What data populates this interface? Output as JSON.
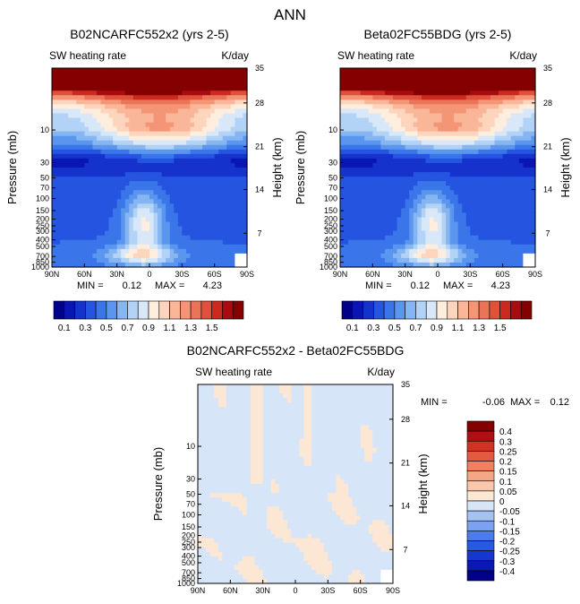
{
  "figure": {
    "title": "ANN",
    "variable": "SW heating rate",
    "units": "K/day",
    "pressure_label": "Pressure (mb)",
    "height_label": "Height (km)",
    "min_label": "MIN =",
    "max_label": "MAX ="
  },
  "colors": {
    "panel_scale": [
      "#00008b",
      "#0a16b4",
      "#1632cc",
      "#2554e0",
      "#3a76ea",
      "#5b96ee",
      "#86b6f2",
      "#b2d2f6",
      "#d9e8f8",
      "#ffeedd",
      "#fdd4bc",
      "#f9b698",
      "#f49676",
      "#eb7458",
      "#e0503a",
      "#cc2a20",
      "#a80c10",
      "#850000"
    ],
    "diff_scale": [
      "#00008b",
      "#0a18b4",
      "#1636d0",
      "#2a58e2",
      "#4a7cec",
      "#7aa2f0",
      "#a6c2f4",
      "#d6e6f8",
      "#fce6d4",
      "#f9c8ac",
      "#f5a684",
      "#ef8160",
      "#e35a40",
      "#d23224",
      "#b01014",
      "#850000"
    ]
  },
  "chart_data": [
    {
      "type": "heatmap",
      "title": "B02NCARFC552x2 (yrs 2-5)",
      "subtitle_left": "SW heating rate",
      "subtitle_right": "K/day",
      "xlabel": "",
      "ylabel": "Pressure (mb)",
      "ylabel_right": "Height (km)",
      "x_ticks": [
        "90N",
        "60N",
        "30N",
        "0",
        "30S",
        "60S",
        "90S"
      ],
      "y_ticks": [
        10,
        30,
        50,
        70,
        100,
        150,
        200,
        250,
        300,
        400,
        500,
        700,
        850,
        1000
      ],
      "y_ticks_right": [
        35,
        28,
        21,
        14,
        7
      ],
      "min": 0.12,
      "max": 4.23,
      "colorbar_labels": [
        "0.1",
        "0.3",
        "0.5",
        "0.7",
        "0.9",
        "1.1",
        "1.3",
        "1.5"
      ]
    },
    {
      "type": "heatmap",
      "title": "Beta02FC55BDG (yrs 2-5)",
      "subtitle_left": "SW heating rate",
      "subtitle_right": "K/day",
      "xlabel": "",
      "ylabel": "Pressure (mb)",
      "ylabel_right": "Height (km)",
      "x_ticks": [
        "90N",
        "60N",
        "30N",
        "0",
        "30S",
        "60S",
        "90S"
      ],
      "y_ticks": [
        10,
        30,
        50,
        70,
        100,
        150,
        200,
        250,
        300,
        400,
        500,
        700,
        850,
        1000
      ],
      "y_ticks_right": [
        35,
        28,
        21,
        14,
        7
      ],
      "min": 0.12,
      "max": 4.23,
      "colorbar_labels": [
        "0.1",
        "0.3",
        "0.5",
        "0.7",
        "0.9",
        "1.1",
        "1.3",
        "1.5"
      ]
    },
    {
      "type": "heatmap",
      "title": "B02NCARFC552x2 - Beta02FC55BDG",
      "subtitle_left": "SW heating rate",
      "subtitle_right": "K/day",
      "xlabel": "",
      "ylabel": "Pressure (mb)",
      "ylabel_right": "Height (km)",
      "x_ticks": [
        "90N",
        "60N",
        "30N",
        "0",
        "30S",
        "60S",
        "90S"
      ],
      "y_ticks": [
        10,
        30,
        50,
        70,
        100,
        150,
        200,
        250,
        300,
        400,
        500,
        700,
        850,
        1000
      ],
      "y_ticks_right": [
        35,
        28,
        21,
        14,
        7
      ],
      "min": -0.06,
      "max": 0.12,
      "colorbar_labels": [
        "0.4",
        "0.3",
        "0.25",
        "0.2",
        "0.15",
        "0.1",
        "0.05",
        "0",
        "-0.05",
        "-0.1",
        "-0.15",
        "-0.2",
        "-0.25",
        "-0.3",
        "-0.4"
      ]
    }
  ]
}
